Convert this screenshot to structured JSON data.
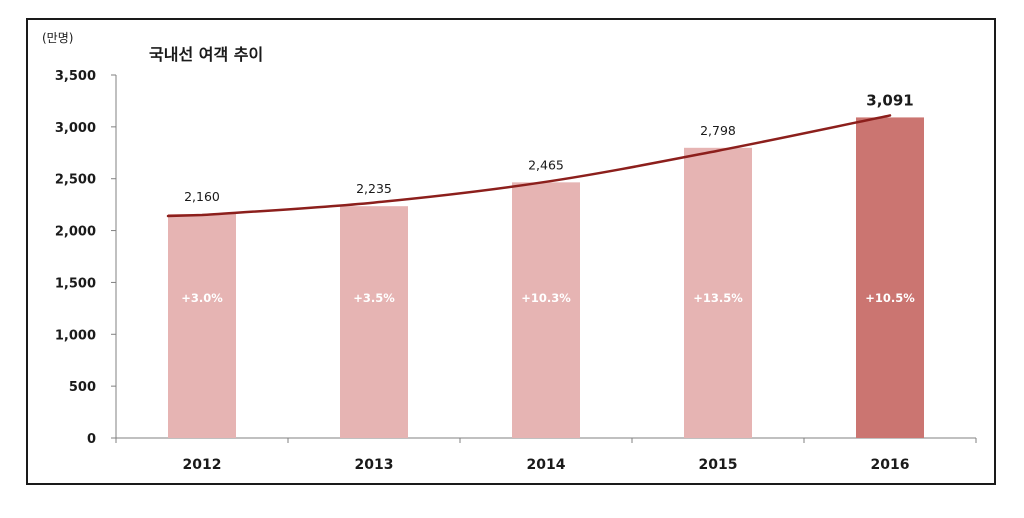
{
  "chart_data": {
    "type": "bar",
    "title": "국내선 여객 추이",
    "unit_label": "(만명)",
    "xlabel": "",
    "ylabel": "",
    "categories": [
      "2012",
      "2013",
      "2014",
      "2015",
      "2016"
    ],
    "values": [
      2160,
      2235,
      2465,
      2798,
      3091
    ],
    "value_labels": [
      "2,160",
      "2,235",
      "2,465",
      "2,798",
      "3,091"
    ],
    "growth_labels": [
      "+3.0%",
      "+3.5%",
      "+10.3%",
      "+13.5%",
      "+10.5%"
    ],
    "highlight_index": 4,
    "ylim": [
      0,
      3500
    ],
    "yticks": [
      0,
      500,
      1000,
      1500,
      2000,
      2500,
      3000,
      3500
    ],
    "ytick_labels": [
      "0",
      "500",
      "1,000",
      "1,500",
      "2,000",
      "2,500",
      "3,000",
      "3,500"
    ],
    "grid": false,
    "trendline": {
      "type": "exponential",
      "x": [
        "2012",
        "2013",
        "2014",
        "2015",
        "2016"
      ],
      "y": [
        2150,
        2270,
        2470,
        2770,
        3110
      ]
    },
    "colors": {
      "bar": "#e6b4b3",
      "bar_highlight": "#cb7571",
      "trendline": "#8c1f1c",
      "axis": "#808080"
    }
  }
}
